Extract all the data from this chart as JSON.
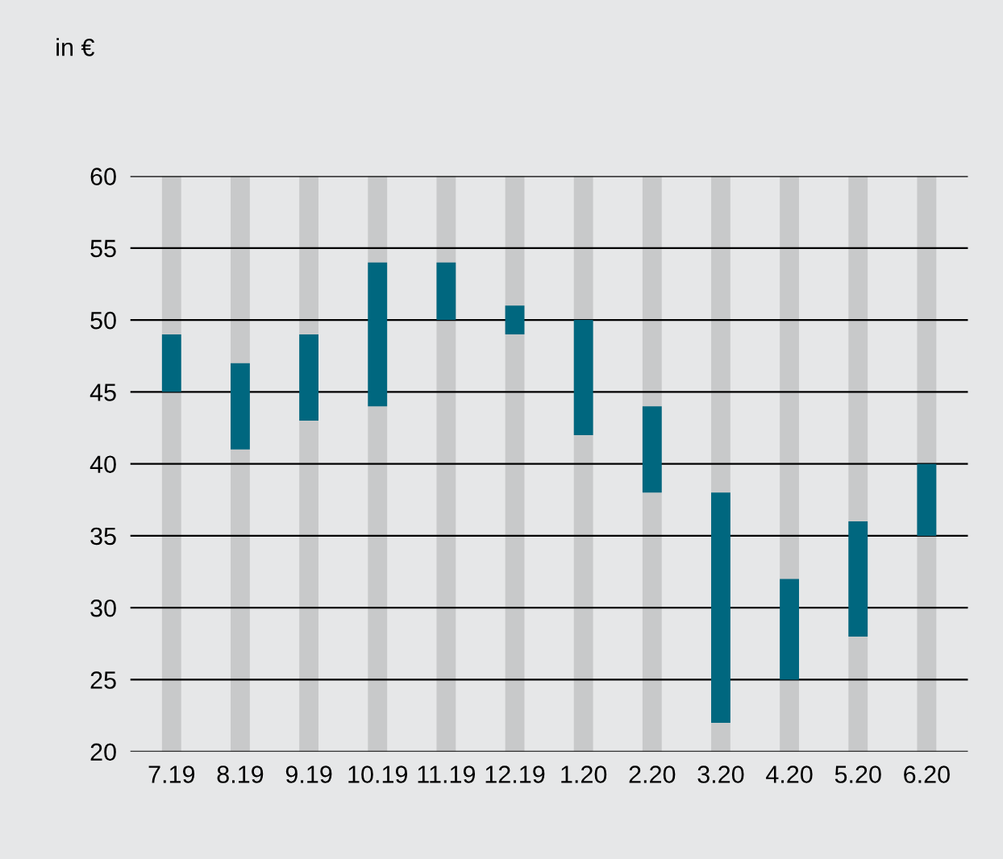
{
  "chart_data": {
    "type": "bar",
    "ylabel": "in €",
    "categories": [
      "7.19",
      "8.19",
      "9.19",
      "10.19",
      "11.19",
      "12.19",
      "1.20",
      "2.20",
      "3.20",
      "4.20",
      "5.20",
      "6.20"
    ],
    "series": [
      {
        "color": "#c8c9ca",
        "base": [
          20,
          20,
          20,
          20,
          20,
          20,
          20,
          20,
          20,
          20,
          20,
          20
        ],
        "values": [
          40,
          40,
          40,
          40,
          40,
          40,
          40,
          40,
          40,
          40,
          40,
          40
        ]
      },
      {
        "color": "#00677f",
        "base": [
          45,
          41,
          43,
          44,
          50,
          49,
          42,
          38,
          22,
          25,
          28,
          35
        ],
        "values": [
          4,
          6,
          6,
          10,
          4,
          2,
          8,
          6,
          16,
          7,
          8,
          5
        ]
      }
    ],
    "ylim": [
      20,
      60
    ],
    "yticks": [
      20,
      25,
      30,
      35,
      40,
      45,
      50,
      55,
      60
    ],
    "grid": "y",
    "legend": false
  }
}
